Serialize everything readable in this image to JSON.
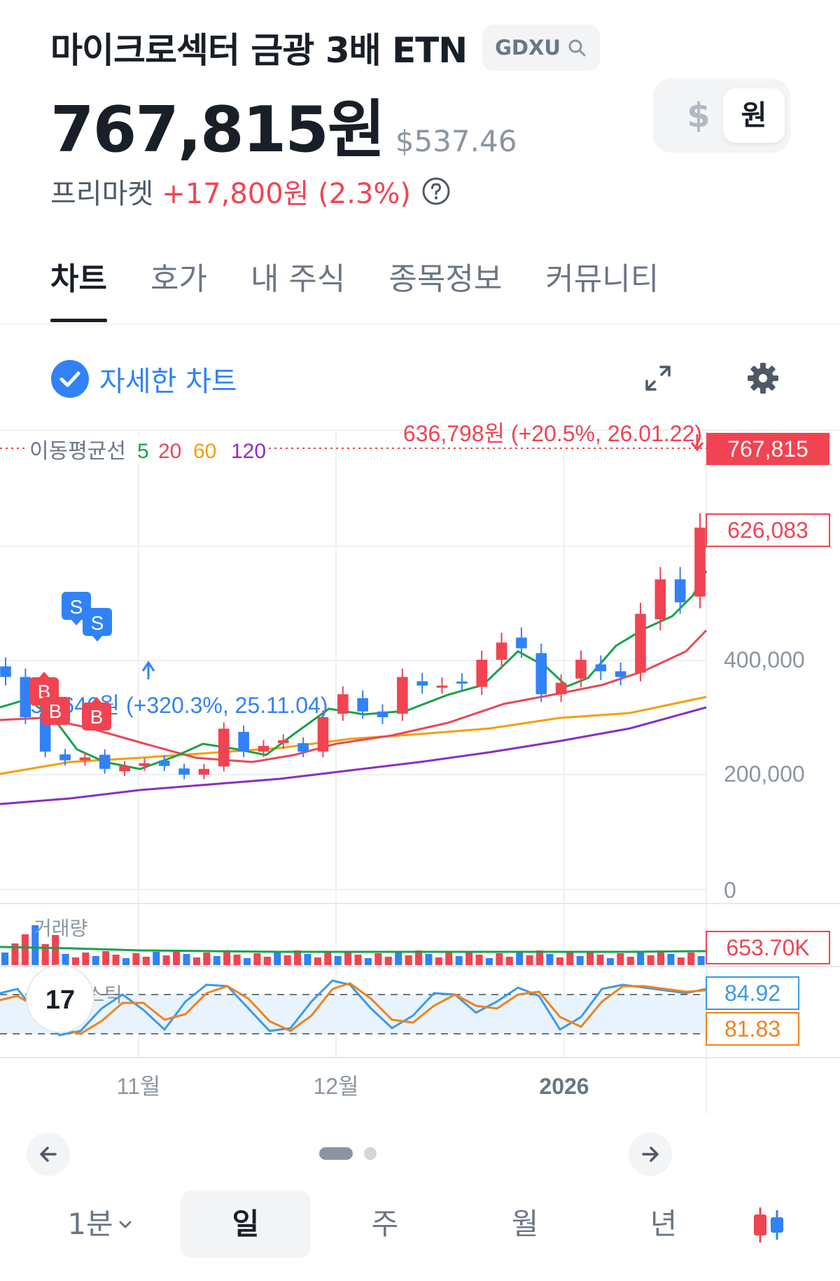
{
  "header": {
    "title": "마이크로섹터 금광 3배 ETN",
    "ticker": "GDXU",
    "price": "767,815원",
    "price_usd": "$537.46",
    "currency_usd": "$",
    "currency_krw": "원",
    "premarket_label": "프리마켓",
    "premarket_change": "+17,800원 (2.3%)"
  },
  "tabs": [
    {
      "label": "차트",
      "active": true
    },
    {
      "label": "호가"
    },
    {
      "label": "내 주식"
    },
    {
      "label": "종목정보"
    },
    {
      "label": "커뮤니티"
    }
  ],
  "detail_chart_label": "자세한 차트",
  "chart": {
    "ma_label": "이동평균선",
    "ma_periods": [
      "5",
      "20",
      "60",
      "120"
    ],
    "current_price_tag": "767,815",
    "last_close_tag": "626,083",
    "high_annotation": "636,798원 (+20.5%, 26.01.22)",
    "low_annotation": "151,646원 (+320.3%, 25.11.04)",
    "y_ticks": [
      "400,000",
      "200,000",
      "0"
    ],
    "volume_label": "거래량",
    "volume_tag": "653.70K",
    "stoch_label": "스토캐스틱",
    "stoch_k_tag": "84.92",
    "stoch_d_tag": "81.83",
    "x_ticks": [
      "11월",
      "12월",
      "2026"
    ],
    "buy_marker": "B",
    "sell_marker": "S",
    "tv_logo": "17"
  },
  "chart_data": {
    "type": "candlestick",
    "y_range": [
      0,
      800000
    ],
    "close": [
      370000,
      300000,
      240000,
      225000,
      230000,
      210000,
      215000,
      220000,
      215000,
      200000,
      210000,
      280000,
      240000,
      250000,
      260000,
      240000,
      300000,
      340000,
      310000,
      300000,
      370000,
      355000,
      355000,
      360000,
      400000,
      430000,
      420000,
      340000,
      360000,
      400000,
      380000,
      370000,
      480000,
      540000,
      500000,
      630000
    ],
    "volume_tag": 653700,
    "stoch_k": 84.92,
    "stoch_d": 81.83
  },
  "colors": {
    "up": "#f04452",
    "down": "#3182f6",
    "ma5": "#16a34a",
    "ma20": "#e64956",
    "ma60": "#f59e0b",
    "ma120": "#8b2ec4",
    "stoch_k": "#3b9ae8",
    "stoch_d": "#f0821c"
  },
  "nav": {
    "prev_icon": "arrow-left-icon",
    "next_icon": "arrow-right-icon"
  },
  "periods": [
    {
      "label": "1분"
    },
    {
      "label": "일",
      "active": true
    },
    {
      "label": "주"
    },
    {
      "label": "월"
    },
    {
      "label": "년"
    }
  ]
}
